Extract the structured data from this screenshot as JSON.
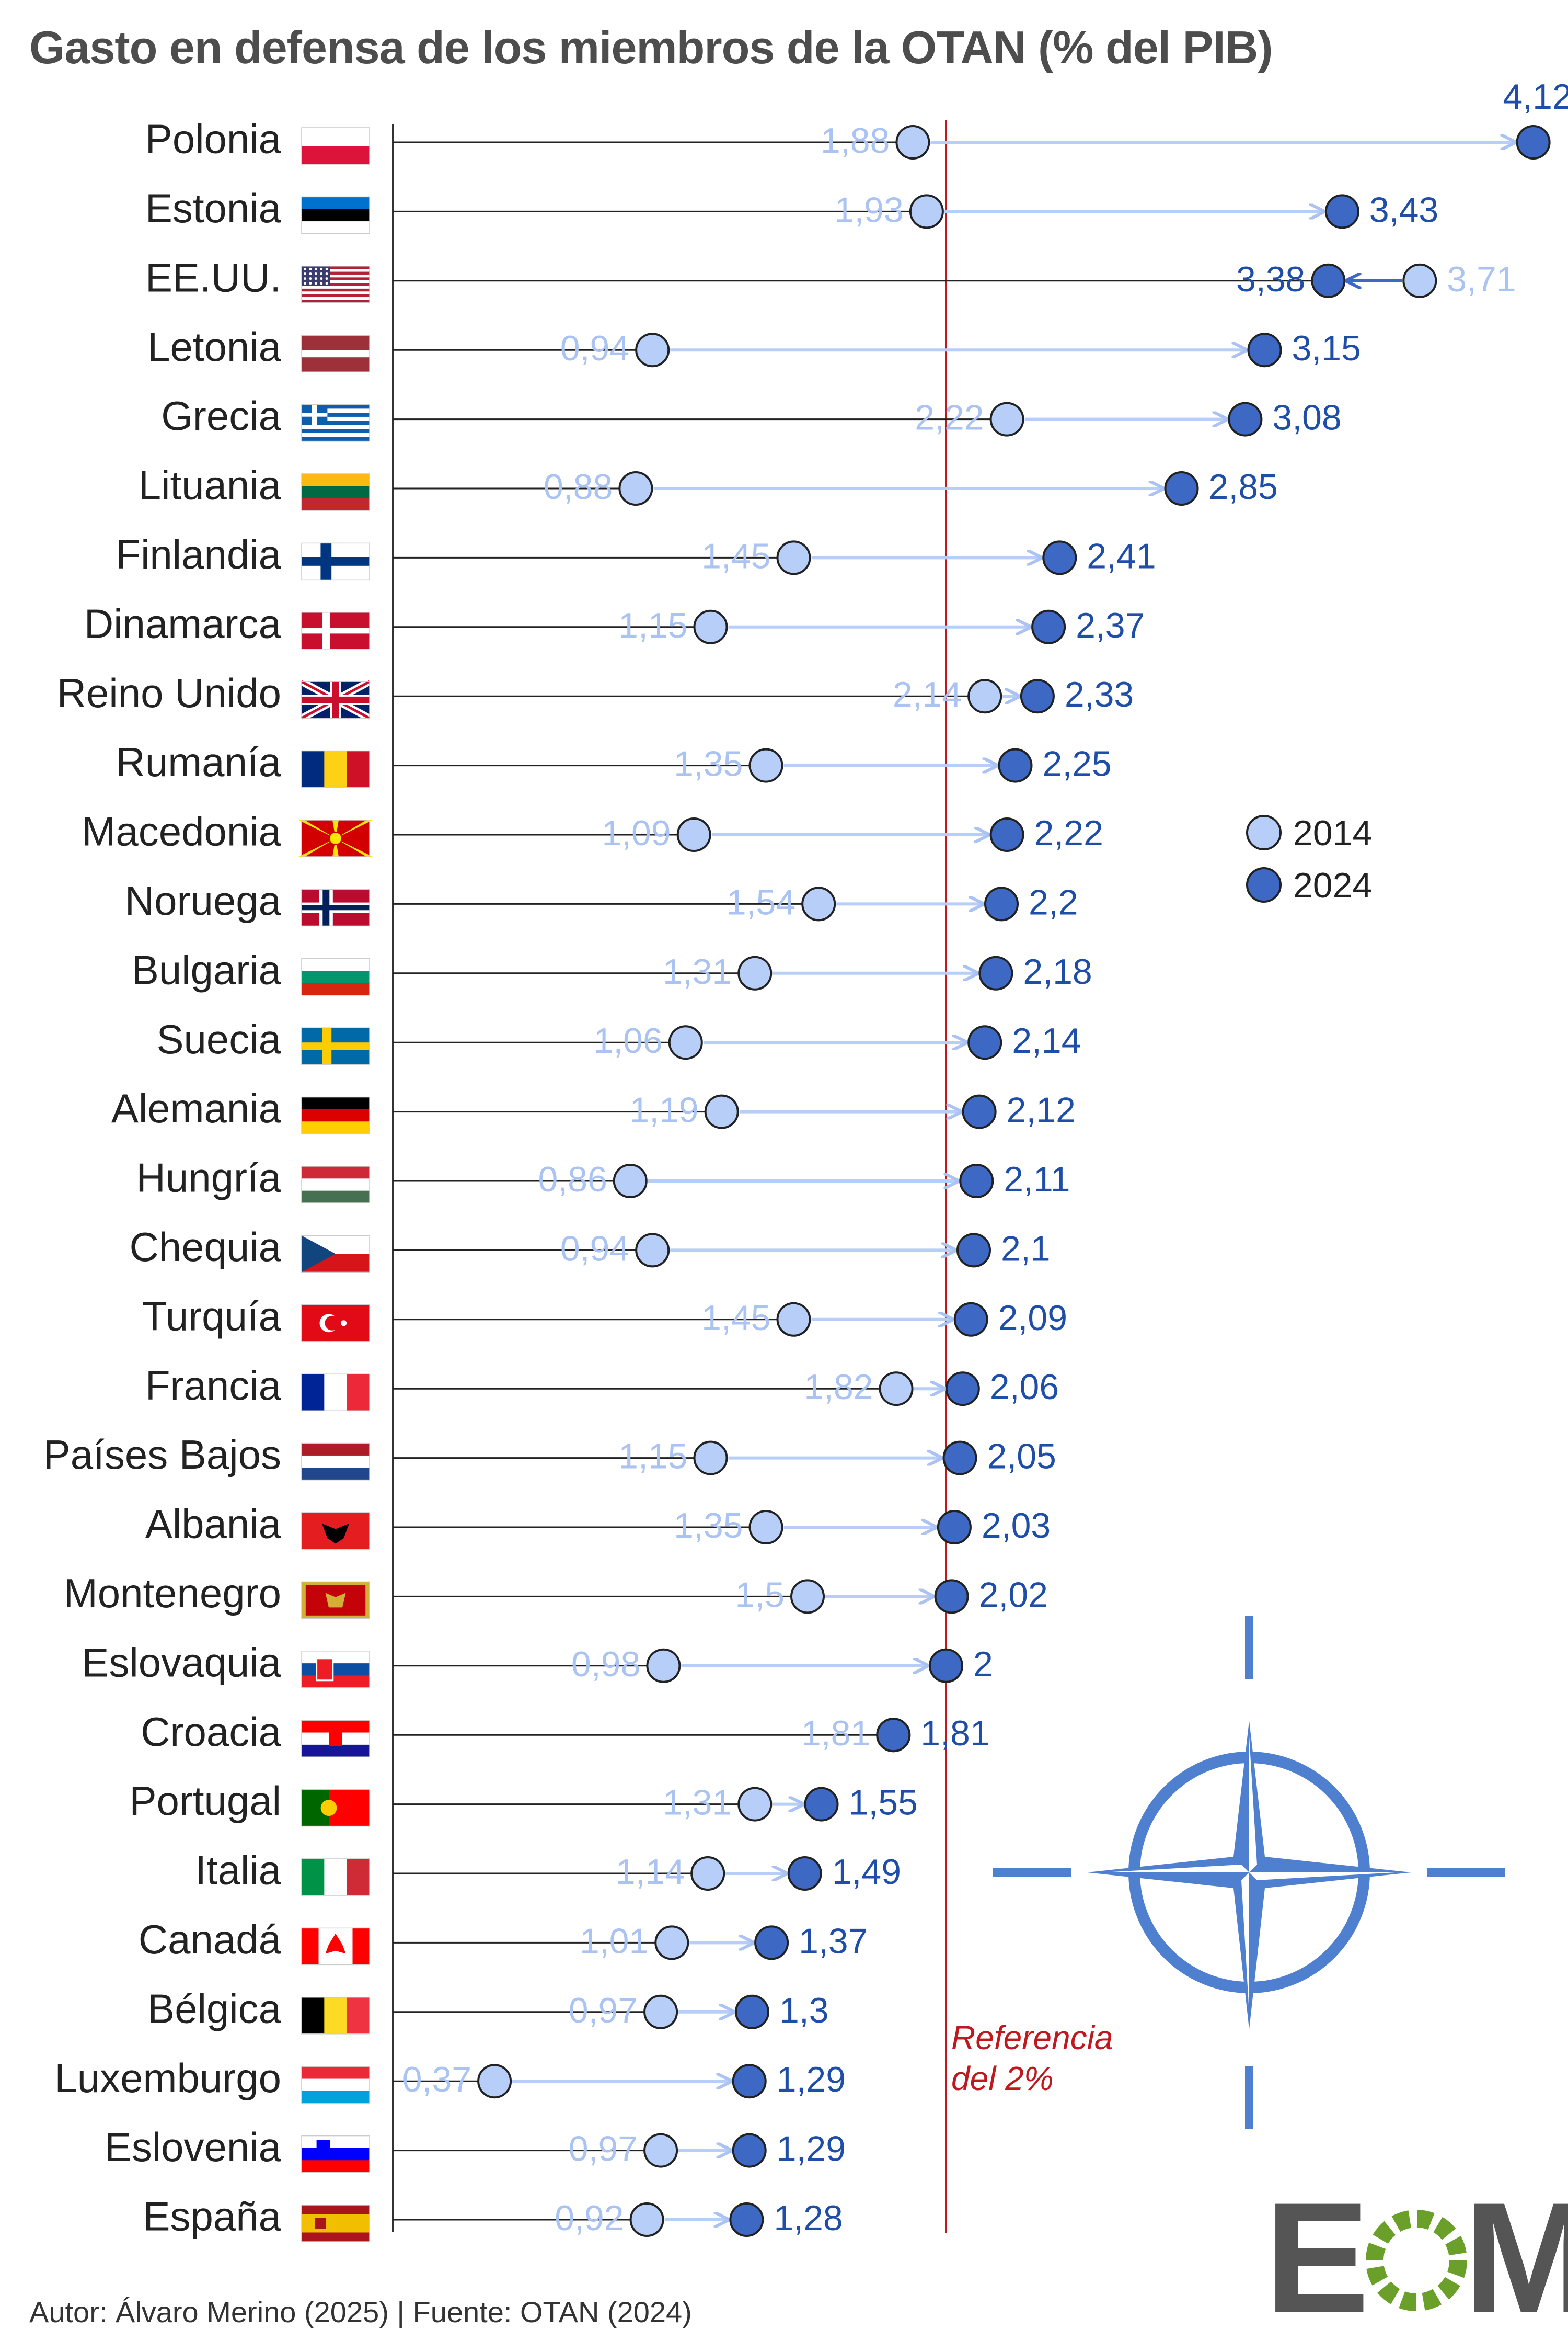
{
  "header": {
    "title": "Gasto en defensa de los miembros de la OTAN (% del PIB)"
  },
  "footer": {
    "text": "Autor: Álvaro Merino (2025) | Fuente: OTAN (2024)"
  },
  "legend": {
    "label_2014": "2014",
    "label_2024": "2024"
  },
  "reference": {
    "line1": "Referencia",
    "line2": "del 2%",
    "value": 2
  },
  "logo": {
    "letter1": "E",
    "letter2": "M"
  },
  "colors": {
    "c2014": "#b7cff8",
    "c2024": "#3d68c4",
    "text2024": "#1f4ea8",
    "text2014": "#aac3f2",
    "reference": "#c0181f",
    "nato": "#4f7fcf"
  },
  "chart_data": {
    "type": "dumbbell",
    "title": "Gasto en defensa de los miembros de la OTAN (% del PIB)",
    "xlim": [
      0,
      4.12
    ],
    "unit": "% del PIB",
    "series": [
      {
        "name": "2014"
      },
      {
        "name": "2024"
      }
    ],
    "rows": [
      {
        "country": "Polonia",
        "flag": "PL",
        "v2014": 1.88,
        "v2024": 4.12,
        "l2014": "1,88",
        "l2024": "4,12"
      },
      {
        "country": "Estonia",
        "flag": "EE",
        "v2014": 1.93,
        "v2024": 3.43,
        "l2014": "1,93",
        "l2024": "3,43"
      },
      {
        "country": "EE.UU.",
        "flag": "US",
        "v2014": 3.71,
        "v2024": 3.38,
        "l2014": "3,71",
        "l2024": "3,38"
      },
      {
        "country": "Letonia",
        "flag": "LV",
        "v2014": 0.94,
        "v2024": 3.15,
        "l2014": "0,94",
        "l2024": "3,15"
      },
      {
        "country": "Grecia",
        "flag": "GR",
        "v2014": 2.22,
        "v2024": 3.08,
        "l2014": "2,22",
        "l2024": "3,08"
      },
      {
        "country": "Lituania",
        "flag": "LT",
        "v2014": 0.88,
        "v2024": 2.85,
        "l2014": "0,88",
        "l2024": "2,85"
      },
      {
        "country": "Finlandia",
        "flag": "FI",
        "v2014": 1.45,
        "v2024": 2.41,
        "l2014": "1,45",
        "l2024": "2,41"
      },
      {
        "country": "Dinamarca",
        "flag": "DK",
        "v2014": 1.15,
        "v2024": 2.37,
        "l2014": "1,15",
        "l2024": "2,37"
      },
      {
        "country": "Reino Unido",
        "flag": "GB",
        "v2014": 2.14,
        "v2024": 2.33,
        "l2014": "2,14",
        "l2024": "2,33"
      },
      {
        "country": "Rumanía",
        "flag": "RO",
        "v2014": 1.35,
        "v2024": 2.25,
        "l2014": "1,35",
        "l2024": "2,25"
      },
      {
        "country": "Macedonia",
        "flag": "MK",
        "v2014": 1.09,
        "v2024": 2.22,
        "l2014": "1,09",
        "l2024": "2,22"
      },
      {
        "country": "Noruega",
        "flag": "NO",
        "v2014": 1.54,
        "v2024": 2.2,
        "l2014": "1,54",
        "l2024": "2,2"
      },
      {
        "country": "Bulgaria",
        "flag": "BG",
        "v2014": 1.31,
        "v2024": 2.18,
        "l2014": "1,31",
        "l2024": "2,18"
      },
      {
        "country": "Suecia",
        "flag": "SE",
        "v2014": 1.06,
        "v2024": 2.14,
        "l2014": "1,06",
        "l2024": "2,14"
      },
      {
        "country": "Alemania",
        "flag": "DE",
        "v2014": 1.19,
        "v2024": 2.12,
        "l2014": "1,19",
        "l2024": "2,12"
      },
      {
        "country": "Hungría",
        "flag": "HU",
        "v2014": 0.86,
        "v2024": 2.11,
        "l2014": "0,86",
        "l2024": "2,11"
      },
      {
        "country": "Chequia",
        "flag": "CZ",
        "v2014": 0.94,
        "v2024": 2.1,
        "l2014": "0,94",
        "l2024": "2,1"
      },
      {
        "country": "Turquía",
        "flag": "TR",
        "v2014": 1.45,
        "v2024": 2.09,
        "l2014": "1,45",
        "l2024": "2,09"
      },
      {
        "country": "Francia",
        "flag": "FR",
        "v2014": 1.82,
        "v2024": 2.06,
        "l2014": "1,82",
        "l2024": "2,06"
      },
      {
        "country": "Países Bajos",
        "flag": "NL",
        "v2014": 1.15,
        "v2024": 2.05,
        "l2014": "1,15",
        "l2024": "2,05"
      },
      {
        "country": "Albania",
        "flag": "AL",
        "v2014": 1.35,
        "v2024": 2.03,
        "l2014": "1,35",
        "l2024": "2,03"
      },
      {
        "country": "Montenegro",
        "flag": "ME",
        "v2014": 1.5,
        "v2024": 2.02,
        "l2014": "1,5",
        "l2024": "2,02"
      },
      {
        "country": "Eslovaquia",
        "flag": "SK",
        "v2014": 0.98,
        "v2024": 2.0,
        "l2014": "0,98",
        "l2024": "2"
      },
      {
        "country": "Croacia",
        "flag": "HR",
        "v2014": 1.81,
        "v2024": 1.81,
        "l2014": "1,81",
        "l2024": "1,81"
      },
      {
        "country": "Portugal",
        "flag": "PT",
        "v2014": 1.31,
        "v2024": 1.55,
        "l2014": "1,31",
        "l2024": "1,55"
      },
      {
        "country": "Italia",
        "flag": "IT",
        "v2014": 1.14,
        "v2024": 1.49,
        "l2014": "1,14",
        "l2024": "1,49"
      },
      {
        "country": "Canadá",
        "flag": "CA",
        "v2014": 1.01,
        "v2024": 1.37,
        "l2014": "1,01",
        "l2024": "1,37"
      },
      {
        "country": "Bélgica",
        "flag": "BE",
        "v2014": 0.97,
        "v2024": 1.3,
        "l2014": "0,97",
        "l2024": "1,3"
      },
      {
        "country": "Luxemburgo",
        "flag": "LU",
        "v2014": 0.37,
        "v2024": 1.29,
        "l2014": "0,37",
        "l2024": "1,29"
      },
      {
        "country": "Eslovenia",
        "flag": "SI",
        "v2014": 0.97,
        "v2024": 1.29,
        "l2014": "0,97",
        "l2024": "1,29"
      },
      {
        "country": "España",
        "flag": "ES",
        "v2014": 0.92,
        "v2024": 1.28,
        "l2014": "0,92",
        "l2024": "1,28"
      }
    ]
  }
}
